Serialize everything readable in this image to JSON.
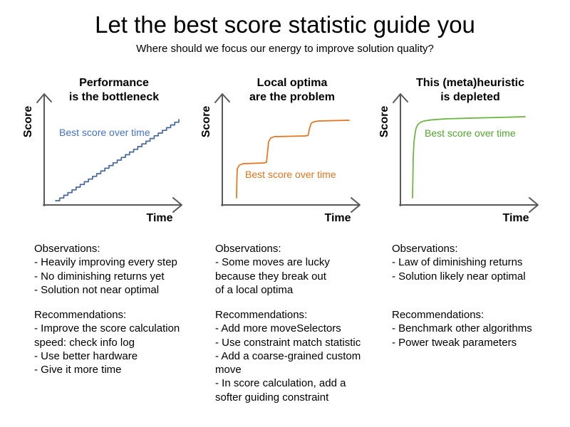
{
  "header": {
    "title": "Let the best score statistic guide you",
    "subtitle": "Where should we focus our energy to improve solution quality?"
  },
  "colors": {
    "axis_gray": "#595959",
    "blue_series": "#46689e",
    "blue_label": "#4472c4",
    "orange": "#e2751d",
    "green_series": "#67b33c",
    "green_label": "#50a52b"
  },
  "panels": [
    {
      "title": "Performance\nis the bottleneck",
      "y_axis_label": "Score",
      "x_axis_label": "Time",
      "series_label": "Best score over time",
      "series_color": "#46689e",
      "label_color": "#4472c4",
      "curve": {
        "shape": "stairs",
        "steps": 30,
        "from": [
          48,
          182
        ],
        "to": [
          221,
          68
        ]
      },
      "observations": {
        "heading": "Observations:",
        "items": [
          "- Heavily improving every step",
          "- No diminishing returns yet",
          "- Solution not near optimal"
        ]
      },
      "recommendations": {
        "heading": "Recommendations:",
        "items": [
          "- Improve the score calculation\nspeed: check info log",
          "- Use better hardware",
          "- Give it more time"
        ]
      }
    },
    {
      "title": "Local optima\nare the problem",
      "y_axis_label": "Score",
      "x_axis_label": "Time",
      "series_label": "Best score over time",
      "series_color": "#e2751d",
      "label_color": "#e2751d",
      "curve": {
        "shape": "polyline",
        "points": [
          [
            52,
            178
          ],
          [
            52.5,
            152
          ],
          [
            53,
            137
          ],
          [
            56,
            132
          ],
          [
            61,
            130
          ],
          [
            90,
            129
          ],
          [
            94,
            128
          ],
          [
            95.5,
            114
          ],
          [
            97,
            99
          ],
          [
            100,
            94
          ],
          [
            105,
            92
          ],
          [
            149,
            91
          ],
          [
            152.5,
            90
          ],
          [
            154.5,
            80
          ],
          [
            157,
            73
          ],
          [
            161,
            71
          ],
          [
            167,
            70
          ],
          [
            210,
            69
          ]
        ]
      },
      "observations": {
        "heading": "Observations:",
        "items": [
          "- Some moves are lucky\nbecause they break out\nof a local optima"
        ]
      },
      "recommendations": {
        "heading": "Recommendations:",
        "items": [
          "- Add more moveSelectors",
          "- Use constraint match statistic",
          "- Add a coarse-grained custom\nmove",
          "- In score calculation, add a\nsofter guiding constraint"
        ]
      }
    },
    {
      "title": "This (meta)heuristic\nis depleted",
      "y_axis_label": "Score",
      "x_axis_label": "Time",
      "series_label": "Best score over time",
      "series_color": "#67b33c",
      "label_color": "#50a52b",
      "curve": {
        "shape": "polyline",
        "points": [
          [
            49,
            178
          ],
          [
            49.5,
            150
          ],
          [
            50,
            120
          ],
          [
            51,
            100
          ],
          [
            52.5,
            88
          ],
          [
            54,
            80
          ],
          [
            56.5,
            75
          ],
          [
            60,
            72
          ],
          [
            65,
            70
          ],
          [
            75,
            68.5
          ],
          [
            95,
            67
          ],
          [
            130,
            66
          ],
          [
            170,
            65
          ],
          [
            207,
            64
          ]
        ]
      },
      "observations": {
        "heading": "Observations:",
        "items": [
          "- Law of diminishing returns",
          "- Solution likely near optimal"
        ]
      },
      "recommendations": {
        "heading": "Recommendations:",
        "items": [
          "- Benchmark other algorithms",
          "- Power tweak parameters"
        ]
      }
    }
  ],
  "chart_data": [
    {
      "type": "line",
      "title": "Performance is the bottleneck",
      "xlabel": "Time",
      "ylabel": "Score",
      "series": [
        {
          "name": "Best score over time",
          "shape": "steady linear staircase increase, no plateau"
        }
      ],
      "ticks": "none",
      "grid": false,
      "legend_position": "inline-label"
    },
    {
      "type": "line",
      "title": "Local optima are the problem",
      "xlabel": "Time",
      "ylabel": "Score",
      "series": [
        {
          "name": "Best score over time",
          "shape": "three steep jumps separated by long flat plateaus"
        }
      ],
      "ticks": "none",
      "grid": false,
      "legend_position": "inline-label"
    },
    {
      "type": "line",
      "title": "This (meta)heuristic is depleted",
      "xlabel": "Time",
      "ylabel": "Score",
      "series": [
        {
          "name": "Best score over time",
          "shape": "rapid initial rise then long nearly-flat plateau"
        }
      ],
      "ticks": "none",
      "grid": false,
      "legend_position": "inline-label"
    }
  ]
}
